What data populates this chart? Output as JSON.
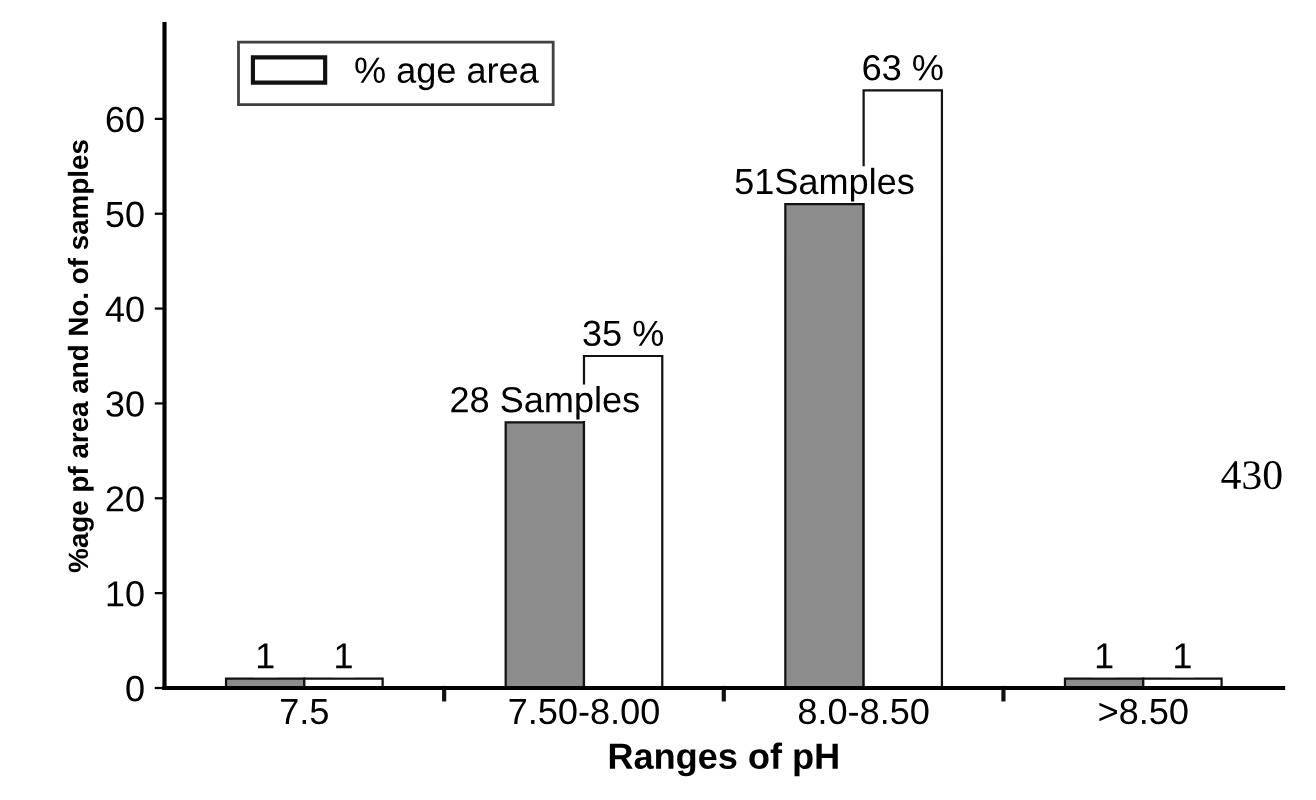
{
  "chart_data": {
    "type": "bar",
    "xlabel": "Ranges of pH",
    "ylabel": "%age pf area and No. of samples",
    "categories": [
      "7.5",
      "7.50-8.00",
      "8.0-8.50",
      ">8.50"
    ],
    "series": [
      {
        "color": "#8c8c8c",
        "values": [
          1,
          28,
          51,
          1
        ],
        "value_labels": [
          "1",
          "28 Samples",
          "51Samples",
          "1"
        ]
      },
      {
        "name": "% age area",
        "color": "#ffffff",
        "values": [
          1,
          35,
          63,
          1
        ],
        "value_labels": [
          "1",
          "35 %",
          "63 %",
          "1"
        ]
      }
    ],
    "ylim": [
      0,
      70
    ],
    "yticks": [
      0,
      10,
      20,
      30,
      40,
      50,
      60
    ],
    "grid": false,
    "legend": "top left",
    "annotations": [
      "430"
    ]
  }
}
